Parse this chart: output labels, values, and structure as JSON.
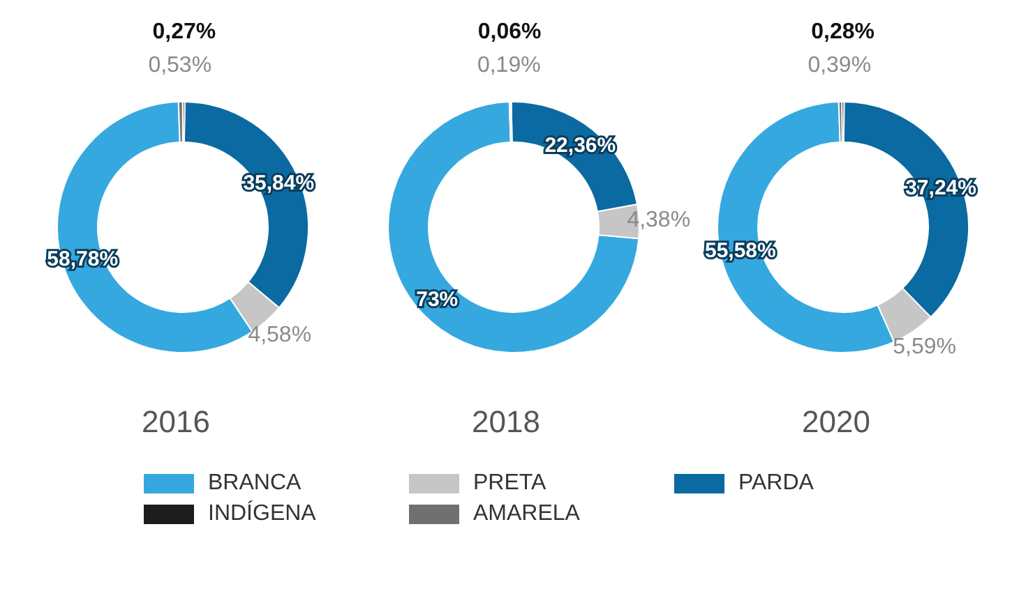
{
  "chart_data": [
    {
      "type": "donut",
      "title": "2016",
      "categories": [
        "BRANCA",
        "PRETA",
        "PARDA",
        "INDÍGENA",
        "AMARELA"
      ],
      "values": [
        58.78,
        4.58,
        35.84,
        0.27,
        0.53
      ],
      "colors": [
        "#35a8e0",
        "#c6c6c6",
        "#0a6aa1",
        "#1d1d1d",
        "#707070"
      ],
      "value_labels": [
        "58,78%",
        "4,58%",
        "35,84%",
        "0,27%",
        "0,53%"
      ],
      "legend": "bottom"
    },
    {
      "type": "donut",
      "title": "2018",
      "values": [
        73,
        4.38,
        22.36,
        0.06,
        0.19
      ],
      "colors": [
        "#35a8e0",
        "#c6c6c6",
        "#0a6aa1",
        "#1d1d1d",
        "#707070"
      ],
      "value_labels": [
        "73%",
        "4,38%",
        "22,36%",
        "0,06%",
        "0,19%"
      ]
    },
    {
      "type": "donut",
      "title": "2020",
      "values": [
        55.58,
        5.59,
        37.24,
        0.28,
        0.39
      ],
      "colors": [
        "#35a8e0",
        "#c6c6c6",
        "#0a6aa1",
        "#1d1d1d",
        "#707070"
      ],
      "value_labels": [
        "55,58%",
        "5,59%",
        "37,24%",
        "0,28%",
        "0,39%"
      ]
    }
  ]
}
